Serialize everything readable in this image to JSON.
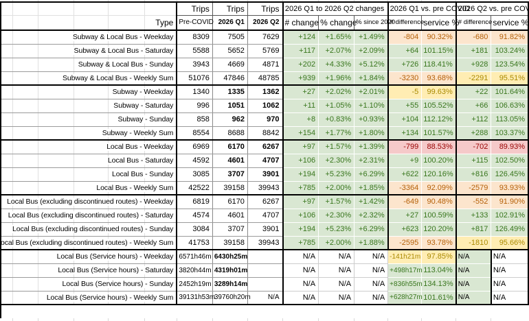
{
  "header": {
    "type_label": "Type",
    "trips_label": "Trips",
    "period_cols": [
      "Pre-COVID",
      "2026 Q1",
      "2026 Q2"
    ],
    "groups": [
      {
        "title": "2026 Q1 to 2026 Q2 changes",
        "cols": [
          "# change",
          "% change",
          "% since 2020"
        ]
      },
      {
        "title": "2026 Q1 vs. pre COVID",
        "cols": [
          "# difference",
          "service %"
        ]
      },
      {
        "title": "2026 Q2 vs. pre COVID",
        "cols": [
          "# difference",
          "service %"
        ]
      }
    ]
  },
  "colors": {
    "positive_bg": "#d9e7d2",
    "positive_text": "#38761d",
    "warn_bg": "#fce5cd",
    "warn_text": "#b45f06",
    "caution_bg": "#ffedb3",
    "caution_text": "#a98a00",
    "negative_bg": "#f5c9c9",
    "negative_text": "#990000"
  },
  "rows": [
    {
      "label": "Subway & Local Bus - Weekday",
      "trips": [
        "8309",
        "7505",
        "7629"
      ],
      "bold_q": false,
      "hm": false,
      "section_end": false,
      "cells": [
        {
          "v": "+124",
          "tone": "green"
        },
        {
          "v": "+1.65%",
          "tone": "green"
        },
        {
          "v": "+1.49%",
          "tone": "green"
        },
        {
          "v": "-804",
          "tone": "orange"
        },
        {
          "v": "90.32%",
          "tone": "orange"
        },
        {
          "v": "-680",
          "tone": "orange"
        },
        {
          "v": "91.82%",
          "tone": "orange"
        }
      ]
    },
    {
      "label": "Subway & Local Bus - Saturday",
      "trips": [
        "5588",
        "5652",
        "5769"
      ],
      "bold_q": false,
      "hm": false,
      "section_end": false,
      "cells": [
        {
          "v": "+117",
          "tone": "green"
        },
        {
          "v": "+2.07%",
          "tone": "green"
        },
        {
          "v": "+2.09%",
          "tone": "green"
        },
        {
          "v": "+64",
          "tone": "green"
        },
        {
          "v": "101.15%",
          "tone": "green"
        },
        {
          "v": "+181",
          "tone": "green"
        },
        {
          "v": "103.24%",
          "tone": "green"
        }
      ]
    },
    {
      "label": "Subway & Local Bus - Sunday",
      "trips": [
        "3943",
        "4669",
        "4871"
      ],
      "bold_q": false,
      "hm": false,
      "section_end": false,
      "cells": [
        {
          "v": "+202",
          "tone": "green"
        },
        {
          "v": "+4.33%",
          "tone": "green"
        },
        {
          "v": "+5.12%",
          "tone": "green"
        },
        {
          "v": "+726",
          "tone": "green"
        },
        {
          "v": "118.41%",
          "tone": "green"
        },
        {
          "v": "+928",
          "tone": "green"
        },
        {
          "v": "123.54%",
          "tone": "green"
        }
      ]
    },
    {
      "label": "Subway & Local Bus - Weekly Sum",
      "trips": [
        "51076",
        "47846",
        "48785"
      ],
      "bold_q": false,
      "hm": false,
      "section_end": true,
      "cells": [
        {
          "v": "+939",
          "tone": "green"
        },
        {
          "v": "+1.96%",
          "tone": "green"
        },
        {
          "v": "+1.84%",
          "tone": "green"
        },
        {
          "v": "-3230",
          "tone": "orange"
        },
        {
          "v": "93.68%",
          "tone": "orange"
        },
        {
          "v": "-2291",
          "tone": "yellow"
        },
        {
          "v": "95.51%",
          "tone": "yellow"
        }
      ]
    },
    {
      "label": "Subway - Weekday",
      "trips": [
        "1340",
        "1335",
        "1362"
      ],
      "bold_q": true,
      "hm": false,
      "section_end": false,
      "cells": [
        {
          "v": "+27",
          "tone": "green"
        },
        {
          "v": "+2.02%",
          "tone": "green"
        },
        {
          "v": "+2.01%",
          "tone": "green"
        },
        {
          "v": "-5",
          "tone": "yellow"
        },
        {
          "v": "99.63%",
          "tone": "yellow"
        },
        {
          "v": "+22",
          "tone": "green"
        },
        {
          "v": "101.64%",
          "tone": "green"
        }
      ]
    },
    {
      "label": "Subway - Saturday",
      "trips": [
        "996",
        "1051",
        "1062"
      ],
      "bold_q": true,
      "hm": false,
      "section_end": false,
      "cells": [
        {
          "v": "+11",
          "tone": "green"
        },
        {
          "v": "+1.05%",
          "tone": "green"
        },
        {
          "v": "+1.10%",
          "tone": "green"
        },
        {
          "v": "+55",
          "tone": "green"
        },
        {
          "v": "105.52%",
          "tone": "green"
        },
        {
          "v": "+66",
          "tone": "green"
        },
        {
          "v": "106.63%",
          "tone": "green"
        }
      ]
    },
    {
      "label": "Subway - Sunday",
      "trips": [
        "858",
        "962",
        "970"
      ],
      "bold_q": true,
      "hm": false,
      "section_end": false,
      "cells": [
        {
          "v": "+8",
          "tone": "green"
        },
        {
          "v": "+0.83%",
          "tone": "green"
        },
        {
          "v": "+0.93%",
          "tone": "green"
        },
        {
          "v": "+104",
          "tone": "green"
        },
        {
          "v": "112.12%",
          "tone": "green"
        },
        {
          "v": "+112",
          "tone": "green"
        },
        {
          "v": "113.05%",
          "tone": "green"
        }
      ]
    },
    {
      "label": "Subway - Weekly Sum",
      "trips": [
        "8554",
        "8688",
        "8842"
      ],
      "bold_q": false,
      "hm": false,
      "section_end": true,
      "cells": [
        {
          "v": "+154",
          "tone": "green"
        },
        {
          "v": "+1.77%",
          "tone": "green"
        },
        {
          "v": "+1.80%",
          "tone": "green"
        },
        {
          "v": "+134",
          "tone": "green"
        },
        {
          "v": "101.57%",
          "tone": "green"
        },
        {
          "v": "+288",
          "tone": "green"
        },
        {
          "v": "103.37%",
          "tone": "green"
        }
      ]
    },
    {
      "label": "Local Bus - Weekday",
      "trips": [
        "6969",
        "6170",
        "6267"
      ],
      "bold_q": true,
      "hm": false,
      "section_end": false,
      "cells": [
        {
          "v": "+97",
          "tone": "green"
        },
        {
          "v": "+1.57%",
          "tone": "green"
        },
        {
          "v": "+1.39%",
          "tone": "green"
        },
        {
          "v": "-799",
          "tone": "pink"
        },
        {
          "v": "88.53%",
          "tone": "pink"
        },
        {
          "v": "-702",
          "tone": "pink"
        },
        {
          "v": "89.93%",
          "tone": "pink"
        }
      ]
    },
    {
      "label": "Local Bus - Saturday",
      "trips": [
        "4592",
        "4601",
        "4707"
      ],
      "bold_q": true,
      "hm": false,
      "section_end": false,
      "cells": [
        {
          "v": "+106",
          "tone": "green"
        },
        {
          "v": "+2.30%",
          "tone": "green"
        },
        {
          "v": "+2.31%",
          "tone": "green"
        },
        {
          "v": "+9",
          "tone": "green"
        },
        {
          "v": "100.20%",
          "tone": "green"
        },
        {
          "v": "+115",
          "tone": "green"
        },
        {
          "v": "102.50%",
          "tone": "green"
        }
      ]
    },
    {
      "label": "Local Bus - Sunday",
      "trips": [
        "3085",
        "3707",
        "3901"
      ],
      "bold_q": true,
      "hm": false,
      "section_end": false,
      "cells": [
        {
          "v": "+194",
          "tone": "green"
        },
        {
          "v": "+5.23%",
          "tone": "green"
        },
        {
          "v": "+6.29%",
          "tone": "green"
        },
        {
          "v": "+622",
          "tone": "green"
        },
        {
          "v": "120.16%",
          "tone": "green"
        },
        {
          "v": "+816",
          "tone": "green"
        },
        {
          "v": "126.45%",
          "tone": "green"
        }
      ]
    },
    {
      "label": "Local Bus - Weekly Sum",
      "trips": [
        "42522",
        "39158",
        "39943"
      ],
      "bold_q": false,
      "hm": false,
      "section_end": true,
      "cells": [
        {
          "v": "+785",
          "tone": "green"
        },
        {
          "v": "+2.00%",
          "tone": "green"
        },
        {
          "v": "+1.85%",
          "tone": "green"
        },
        {
          "v": "-3364",
          "tone": "orange"
        },
        {
          "v": "92.09%",
          "tone": "orange"
        },
        {
          "v": "-2579",
          "tone": "orange"
        },
        {
          "v": "93.93%",
          "tone": "orange"
        }
      ]
    },
    {
      "label": "Local Bus (excluding discontinued routes) - Weekday",
      "trips": [
        "6819",
        "6170",
        "6267"
      ],
      "bold_q": false,
      "hm": false,
      "section_end": false,
      "cells": [
        {
          "v": "+97",
          "tone": "green"
        },
        {
          "v": "+1.57%",
          "tone": "green"
        },
        {
          "v": "+1.42%",
          "tone": "green"
        },
        {
          "v": "-649",
          "tone": "orange"
        },
        {
          "v": "90.48%",
          "tone": "orange"
        },
        {
          "v": "-552",
          "tone": "orange"
        },
        {
          "v": "91.90%",
          "tone": "orange"
        }
      ]
    },
    {
      "label": "Local Bus (excluding discontinued routes) - Saturday",
      "trips": [
        "4574",
        "4601",
        "4707"
      ],
      "bold_q": false,
      "hm": false,
      "section_end": false,
      "cells": [
        {
          "v": "+106",
          "tone": "green"
        },
        {
          "v": "+2.30%",
          "tone": "green"
        },
        {
          "v": "+2.32%",
          "tone": "green"
        },
        {
          "v": "+27",
          "tone": "green"
        },
        {
          "v": "100.59%",
          "tone": "green"
        },
        {
          "v": "+133",
          "tone": "green"
        },
        {
          "v": "102.91%",
          "tone": "green"
        }
      ]
    },
    {
      "label": "Local Bus (excluding discontinued routes) - Sunday",
      "trips": [
        "3084",
        "3707",
        "3901"
      ],
      "bold_q": false,
      "hm": false,
      "section_end": false,
      "cells": [
        {
          "v": "+194",
          "tone": "green"
        },
        {
          "v": "+5.23%",
          "tone": "green"
        },
        {
          "v": "+6.29%",
          "tone": "green"
        },
        {
          "v": "+623",
          "tone": "green"
        },
        {
          "v": "120.20%",
          "tone": "green"
        },
        {
          "v": "+817",
          "tone": "green"
        },
        {
          "v": "126.49%",
          "tone": "green"
        }
      ]
    },
    {
      "label": "Local Bus (excluding discontinued routes) - Weekly Sum",
      "trips": [
        "41753",
        "39158",
        "39943"
      ],
      "bold_q": false,
      "hm": false,
      "section_end": true,
      "cells": [
        {
          "v": "+785",
          "tone": "green"
        },
        {
          "v": "+2.00%",
          "tone": "green"
        },
        {
          "v": "+1.88%",
          "tone": "green"
        },
        {
          "v": "-2595",
          "tone": "orange"
        },
        {
          "v": "93.78%",
          "tone": "orange"
        },
        {
          "v": "-1810",
          "tone": "yellow"
        },
        {
          "v": "95.66%",
          "tone": "yellow"
        }
      ]
    },
    {
      "label": "Local Bus (Service hours) - Weekday",
      "trips": [
        "6571h46m",
        "6430h25m",
        ""
      ],
      "bold_q": true,
      "hm": true,
      "section_end": false,
      "cells": [
        {
          "v": "N/A",
          "tone": "plain"
        },
        {
          "v": "N/A",
          "tone": "plain"
        },
        {
          "v": "N/A",
          "tone": "plain"
        },
        {
          "v": "-141h21m",
          "tone": "yellow",
          "small": true
        },
        {
          "v": "97.85%",
          "tone": "yellow"
        },
        {
          "v": "N/A",
          "tone": "green-left"
        },
        {
          "v": "N/A",
          "tone": "plain-left"
        }
      ]
    },
    {
      "label": "Local Bus (Service hours) - Saturday",
      "trips": [
        "3820h44m",
        "4319h01m",
        ""
      ],
      "bold_q": true,
      "hm": true,
      "section_end": false,
      "cells": [
        {
          "v": "N/A",
          "tone": "plain"
        },
        {
          "v": "N/A",
          "tone": "plain"
        },
        {
          "v": "N/A",
          "tone": "plain"
        },
        {
          "v": "+498h17m",
          "tone": "green",
          "small": true
        },
        {
          "v": "113.04%",
          "tone": "green"
        },
        {
          "v": "N/A",
          "tone": "green-left"
        },
        {
          "v": "N/A",
          "tone": "plain-left"
        }
      ]
    },
    {
      "label": "Local Bus (Service hours) - Sunday",
      "trips": [
        "2452h19m",
        "3289h14m",
        ""
      ],
      "bold_q": true,
      "hm": true,
      "section_end": false,
      "cells": [
        {
          "v": "N/A",
          "tone": "plain"
        },
        {
          "v": "N/A",
          "tone": "plain"
        },
        {
          "v": "N/A",
          "tone": "plain"
        },
        {
          "v": "+836h55m",
          "tone": "green",
          "small": true
        },
        {
          "v": "134.13%",
          "tone": "green"
        },
        {
          "v": "N/A",
          "tone": "green-left"
        },
        {
          "v": "N/A",
          "tone": "plain-left"
        }
      ]
    },
    {
      "label": "Local Bus (Service hours) - Weekly Sum",
      "trips": [
        "39131h53m",
        "39760h20m",
        "N/A"
      ],
      "bold_q": false,
      "hm": true,
      "section_end": true,
      "cells": [
        {
          "v": "N/A",
          "tone": "plain"
        },
        {
          "v": "N/A",
          "tone": "plain"
        },
        {
          "v": "N/A",
          "tone": "plain"
        },
        {
          "v": "+628h27m",
          "tone": "green",
          "small": true
        },
        {
          "v": "101.61%",
          "tone": "green"
        },
        {
          "v": "N/A",
          "tone": "green-left"
        },
        {
          "v": "N/A",
          "tone": "plain-left"
        }
      ]
    }
  ]
}
